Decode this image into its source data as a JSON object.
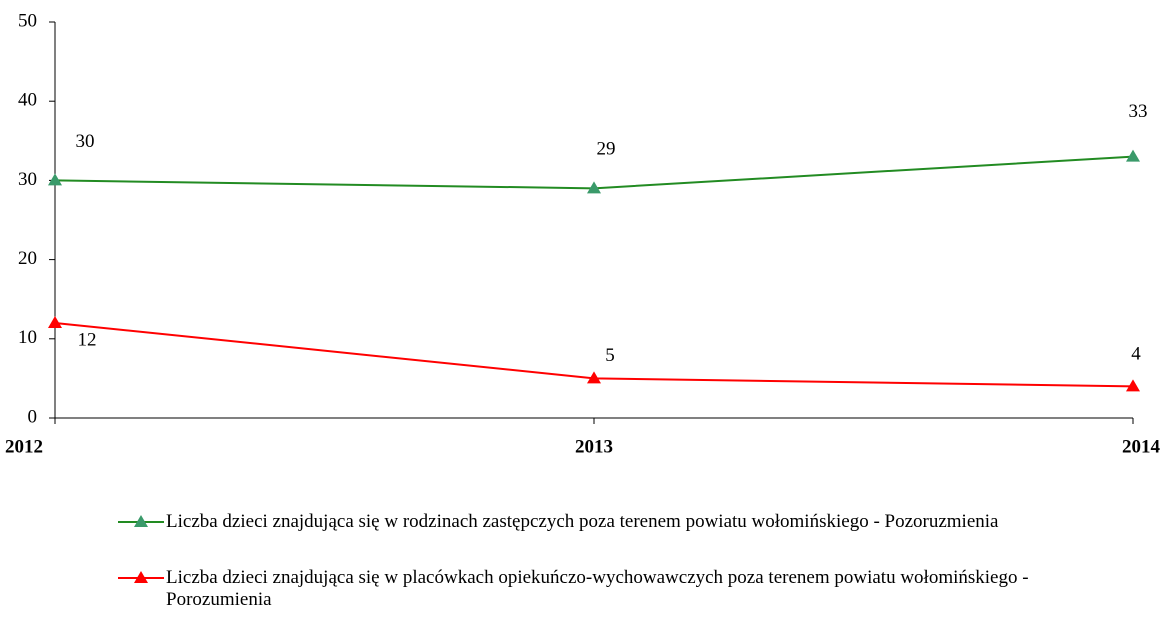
{
  "chart_data": {
    "type": "line",
    "categories": [
      "2012",
      "2013",
      "2014"
    ],
    "series": [
      {
        "name": "Liczba dzieci znajdująca się w rodzinach zastępczych poza terenem  powiatu wołomińskiego - Pozoruzmienia",
        "color": "#228b22",
        "marker_color": "#3a9a6a",
        "values": [
          30,
          29,
          33
        ]
      },
      {
        "name": "Liczba dzieci znajdująca się w placówkach opiekuńczo-wychowawczych poza terenem powiatu wołomińskiego - Porozumienia",
        "color": "#ff0000",
        "marker_color": "#ff0000",
        "values": [
          12,
          5,
          4
        ]
      }
    ],
    "ylim": [
      0,
      50
    ],
    "yticks": [
      0,
      10,
      20,
      30,
      40,
      50
    ],
    "grid": false
  }
}
